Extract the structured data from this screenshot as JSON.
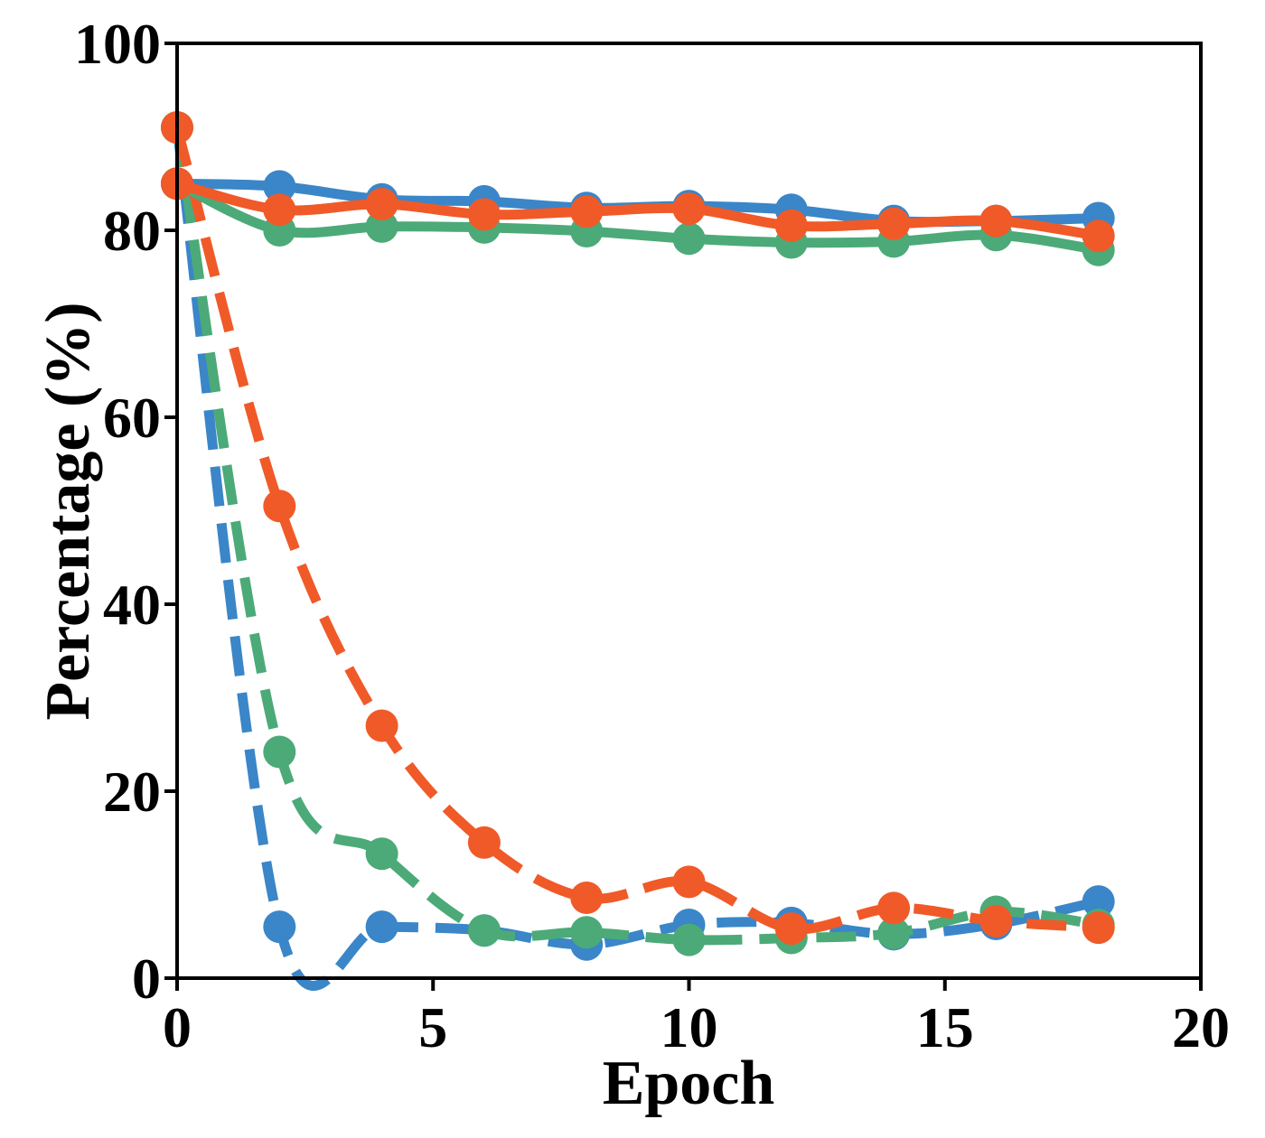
{
  "chart_data": {
    "type": "line",
    "title": "",
    "xlabel": "Epoch",
    "ylabel": "Percentage (%)",
    "xlim": [
      0,
      20
    ],
    "ylim": [
      0,
      100
    ],
    "xticks": [
      0,
      5,
      10,
      15,
      20
    ],
    "yticks": [
      0,
      20,
      40,
      60,
      80,
      100
    ],
    "grid": false,
    "legend": "none",
    "x": [
      0,
      2,
      4,
      6,
      8,
      10,
      12,
      14,
      16,
      18
    ],
    "series": [
      {
        "color": "#3a86c8",
        "style": "solid",
        "values": [
          85.0,
          84.7,
          83.3,
          83.1,
          82.4,
          82.6,
          82.2,
          81.0,
          81.0,
          81.3
        ]
      },
      {
        "color": "#4caa78",
        "style": "solid",
        "values": [
          85.0,
          80.0,
          80.4,
          80.3,
          79.9,
          79.1,
          78.7,
          78.8,
          79.5,
          77.9
        ]
      },
      {
        "color": "#f05a28",
        "style": "solid",
        "values": [
          85.0,
          82.2,
          82.8,
          81.7,
          82.0,
          82.3,
          80.5,
          80.7,
          81.0,
          79.4
        ]
      },
      {
        "color": "#3a86c8",
        "style": "dashed",
        "values": [
          91.0,
          5.5,
          5.5,
          5.1,
          3.6,
          5.7,
          5.9,
          4.7,
          5.8,
          8.2
        ]
      },
      {
        "color": "#4caa78",
        "style": "dashed",
        "values": [
          91.0,
          24.2,
          13.3,
          5.1,
          4.9,
          4.1,
          4.3,
          4.8,
          7.1,
          5.7
        ]
      },
      {
        "color": "#f05a28",
        "style": "dashed",
        "values": [
          91.0,
          50.5,
          27.0,
          14.5,
          8.6,
          10.3,
          5.3,
          7.5,
          6.1,
          5.4
        ]
      }
    ]
  }
}
